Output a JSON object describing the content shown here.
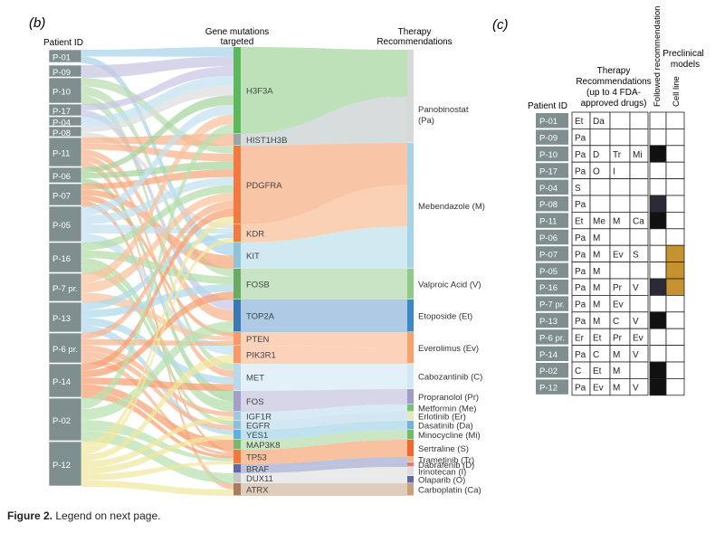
{
  "panel_b": {
    "label": "(b)",
    "col_patient": "Patient ID",
    "col_genes": [
      "Gene mutations",
      "targeted"
    ],
    "col_therapy": [
      "Therapy",
      "Recommendations"
    ],
    "patients": [
      "P-01",
      "P-09",
      "P-10",
      "P-17",
      "P-04",
      "P-08",
      "P-11",
      "P-06",
      "P-07",
      "P-05",
      "P-16",
      "P-7 pr.",
      "P-13",
      "P-6 pr.",
      "P-14",
      "P-02",
      "P-12"
    ],
    "genes": [
      "H3F3A",
      "HIST1H3B",
      "PDGFRA",
      "KDR",
      "KIT",
      "FOSB",
      "TOP2A",
      "PTEN",
      "PIK3R1",
      "MET",
      "FOS",
      "IGF1R",
      "EGFR",
      "YES1",
      "MAP3K8",
      "TP53",
      "BRAF",
      "DUX11",
      "ATRX"
    ],
    "therapies": [
      "Panobinostat (Pa)",
      "Mebendazole (M)",
      "Valproic Acid (V)",
      "Etoposide (Et)",
      "Everolimus (Ev)",
      "Cabozantinib (C)",
      "Propranolol (Pr)",
      "Metformin (Me)",
      "Erlotinib (Er)",
      "Dasatinib (Da)",
      "Minocycline (Mi)",
      "Sertraline (S)",
      "Trametinib (Tr)",
      "Dabrafenib (D)",
      "Irinotecan (I)",
      "Olaparib (O)",
      "Carboplatin (Ca)"
    ]
  },
  "panel_c": {
    "label": "(c)",
    "col_patient": "Patient ID",
    "col_therapy": [
      "Therapy",
      "Recommendations",
      "(up to 4 FDA-",
      "approved drugs)"
    ],
    "col_followed": "Followed recommendation",
    "col_preclinical": [
      "Preclinical",
      "models"
    ],
    "col_cellline": "Cell line",
    "rows": [
      {
        "id": "P-01",
        "drugs": [
          "Et",
          "Da",
          "",
          ""
        ]
      },
      {
        "id": "P-09",
        "drugs": [
          "Pa",
          "",
          "",
          ""
        ]
      },
      {
        "id": "P-10",
        "drugs": [
          "Pa",
          "D",
          "Tr",
          "Mi"
        ]
      },
      {
        "id": "P-17",
        "drugs": [
          "Pa",
          "O",
          "I",
          ""
        ]
      },
      {
        "id": "P-04",
        "drugs": [
          "S",
          "",
          "",
          ""
        ]
      },
      {
        "id": "P-08",
        "drugs": [
          "Pa",
          "",
          "",
          ""
        ]
      },
      {
        "id": "P-11",
        "drugs": [
          "Et",
          "Me",
          "M",
          "Ca"
        ]
      },
      {
        "id": "P-06",
        "drugs": [
          "Pa",
          "M",
          "",
          ""
        ]
      },
      {
        "id": "P-07",
        "drugs": [
          "Pa",
          "M",
          "Ev",
          "S"
        ]
      },
      {
        "id": "P-05",
        "drugs": [
          "Pa",
          "M",
          "",
          ""
        ]
      },
      {
        "id": "P-16",
        "drugs": [
          "Pa",
          "M",
          "Pr",
          "V"
        ]
      },
      {
        "id": "P-7 pr.",
        "drugs": [
          "Pa",
          "M",
          "Ev",
          ""
        ]
      },
      {
        "id": "P-13",
        "drugs": [
          "Pa",
          "M",
          "C",
          "V"
        ]
      },
      {
        "id": "P-6 pr.",
        "drugs": [
          "Er",
          "Et",
          "Pr",
          "Ev"
        ]
      },
      {
        "id": "P-14",
        "drugs": [
          "Pa",
          "C",
          "M",
          "V"
        ]
      },
      {
        "id": "P-02",
        "drugs": [
          "C",
          "Et",
          "M",
          ""
        ]
      },
      {
        "id": "P-12",
        "drugs": [
          "Pa",
          "Ev",
          "M",
          "V"
        ]
      }
    ]
  },
  "caption": {
    "bold": "Figure 2.",
    "text": " Legend on next page."
  }
}
